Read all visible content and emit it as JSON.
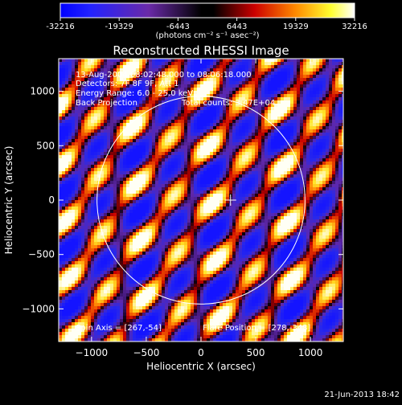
{
  "colorbar": {
    "tick_labels": [
      "-32216",
      "-19329",
      "-6443",
      "6443",
      "19329",
      "32216"
    ],
    "range": [
      -32216,
      32216
    ],
    "units": "(photons cm⁻² s⁻¹ asec⁻²)",
    "colors": [
      "#0000ff",
      "#000000",
      "#ff0000",
      "#ffff00",
      "#ffffff"
    ]
  },
  "chart_data": {
    "type": "heatmap",
    "title": "Reconstructed RHESSI Image",
    "xlabel": "Heliocentric X (arcsec)",
    "ylabel": "Heliocentric Y (arcsec)",
    "xlim": [
      -1300,
      1300
    ],
    "ylim": [
      -1300,
      1300
    ],
    "xticks": [
      -1000,
      -500,
      0,
      500,
      1000
    ],
    "yticks": [
      -1000,
      -500,
      0,
      500,
      1000
    ],
    "xtick_labels": [
      "−1000",
      "−500",
      "0",
      "500",
      "1000"
    ],
    "ytick_labels": [
      "−1000",
      "−500",
      "0",
      "500",
      "1000"
    ],
    "solar_limb_radius": 950,
    "flare_position": [
      278,
      -348
    ],
    "spin_axis": [
      267,
      -54
    ],
    "crosshair": [
      270,
      0
    ],
    "annotations": {
      "time_range": "13-Aug-2004 08:02:48.000 to 08:06:18.000",
      "detectors": "Detectors: 7F 8F 9F, Att 1",
      "energy_range": "Energy Range: 6.0 - 25.0 keV",
      "method": "Back Projection",
      "total_counts": "Total counts: 3.47E+04",
      "spin_axis_label": "Spin Axis = [267,-54]",
      "flare_position_label": "Flare Position = [278,-348]"
    }
  },
  "footer": {
    "timestamp": "21-Jun-2013 18:42"
  }
}
